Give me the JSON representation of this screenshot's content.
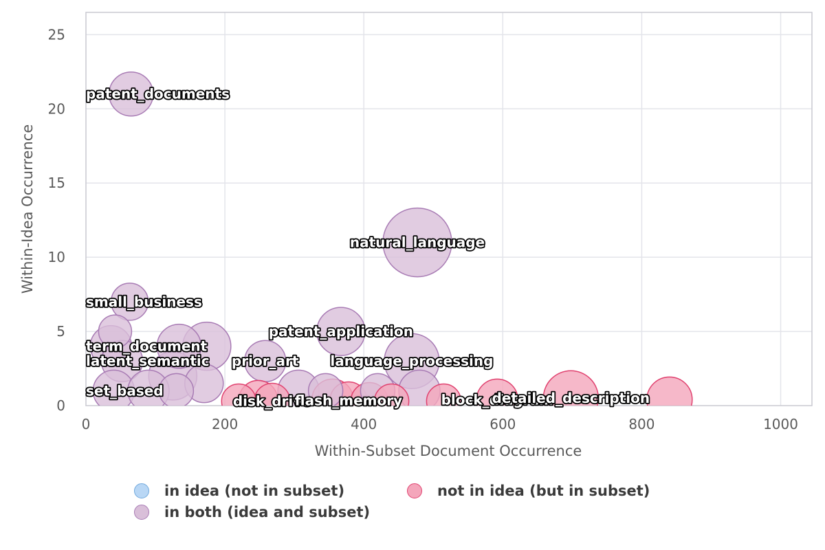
{
  "chart_data": {
    "type": "scatter",
    "xlabel": "Within-Subset Document Occurrence",
    "ylabel": "Within-Idea Occurrence",
    "xlim": [
      0,
      1045
    ],
    "ylim": [
      0,
      26.5
    ],
    "x_ticks": [
      0,
      200,
      400,
      600,
      800,
      1000
    ],
    "y_ticks": [
      0,
      5,
      10,
      15,
      20,
      25
    ],
    "grid": true,
    "legend_position": "bottom",
    "categories": {
      "idea": {
        "label": "in idea (not in subset)",
        "fill": "#b9d7f5",
        "stroke": "#6fa8dc"
      },
      "subset": {
        "label": "not in idea (but in subset)",
        "fill": "#f4a6bb",
        "stroke": "#e0406e"
      },
      "both": {
        "label": "in both (idea and subset)",
        "fill": "#d9bfd9",
        "stroke": "#a87bb4"
      }
    },
    "points": [
      {
        "x": 65,
        "y": 21,
        "size": 32,
        "cat": "both",
        "label": "patent_documents"
      },
      {
        "x": 477,
        "y": 11,
        "size": 50,
        "cat": "both",
        "label": "natural_language"
      },
      {
        "x": 63,
        "y": 7,
        "size": 27,
        "cat": "both",
        "label": "small_business"
      },
      {
        "x": 367,
        "y": 5,
        "size": 35,
        "cat": "both",
        "label": "patent_application"
      },
      {
        "x": 36,
        "y": 4,
        "size": 30,
        "cat": "both",
        "label": "term_document"
      },
      {
        "x": 42,
        "y": 5,
        "size": 24,
        "cat": "both",
        "label": ""
      },
      {
        "x": 134,
        "y": 4,
        "size": 32,
        "cat": "both",
        "label": ""
      },
      {
        "x": 174,
        "y": 4,
        "size": 35,
        "cat": "both",
        "label": ""
      },
      {
        "x": 52,
        "y": 3,
        "size": 30,
        "cat": "both",
        "label": "latent_semantic"
      },
      {
        "x": 258,
        "y": 3,
        "size": 30,
        "cat": "both",
        "label": "prior_art"
      },
      {
        "x": 469,
        "y": 3,
        "size": 40,
        "cat": "both",
        "label": "language_processing"
      },
      {
        "x": 125,
        "y": 2,
        "size": 35,
        "cat": "both",
        "label": ""
      },
      {
        "x": 170,
        "y": 1.5,
        "size": 28,
        "cat": "both",
        "label": ""
      },
      {
        "x": 40,
        "y": 1,
        "size": 30,
        "cat": "both",
        "label": "set_based"
      },
      {
        "x": 90,
        "y": 1,
        "size": 30,
        "cat": "both",
        "label": ""
      },
      {
        "x": 130,
        "y": 1,
        "size": 25,
        "cat": "both",
        "label": ""
      },
      {
        "x": 306,
        "y": 1,
        "size": 30,
        "cat": "both",
        "label": ""
      },
      {
        "x": 345,
        "y": 1,
        "size": 25,
        "cat": "both",
        "label": ""
      },
      {
        "x": 420,
        "y": 1,
        "size": 25,
        "cat": "both",
        "label": ""
      },
      {
        "x": 480,
        "y": 1,
        "size": 30,
        "cat": "both",
        "label": ""
      },
      {
        "x": 220,
        "y": 0.3,
        "size": 25,
        "cat": "subset",
        "label": ""
      },
      {
        "x": 248,
        "y": 0.4,
        "size": 28,
        "cat": "subset",
        "label": ""
      },
      {
        "x": 268,
        "y": 0.3,
        "size": 26,
        "cat": "subset",
        "label": "disk_drive"
      },
      {
        "x": 355,
        "y": 0.4,
        "size": 30,
        "cat": "subset",
        "label": ""
      },
      {
        "x": 378,
        "y": 0.35,
        "size": 27,
        "cat": "subset",
        "label": "flash_memory"
      },
      {
        "x": 408,
        "y": 0.3,
        "size": 27,
        "cat": "subset",
        "label": ""
      },
      {
        "x": 440,
        "y": 0.3,
        "size": 25,
        "cat": "subset",
        "label": ""
      },
      {
        "x": 515,
        "y": 0.3,
        "size": 25,
        "cat": "subset",
        "label": ""
      },
      {
        "x": 592,
        "y": 0.4,
        "size": 30,
        "cat": "subset",
        "label": "block_diagram"
      },
      {
        "x": 698,
        "y": 0.5,
        "size": 40,
        "cat": "subset",
        "label": "detailed_description"
      },
      {
        "x": 840,
        "y": 0.4,
        "size": 33,
        "cat": "subset",
        "label": ""
      }
    ]
  }
}
